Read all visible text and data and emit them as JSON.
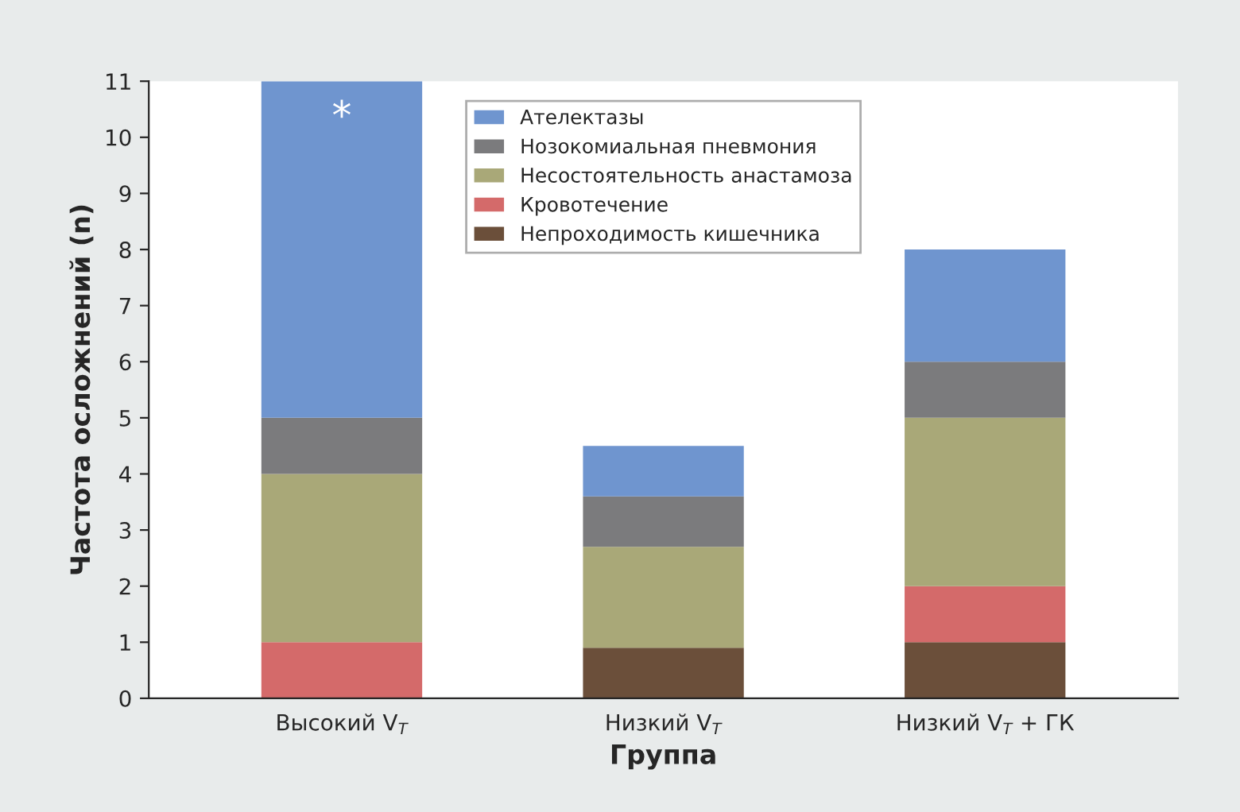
{
  "chart_data": {
    "type": "bar",
    "stacked": true,
    "xlabel": "Группа",
    "ylabel": "Частота осложнений (n)",
    "categories": [
      "Высокий V$_{T}$",
      "Низкий V$_{T}$",
      "Низкий V$_{T}$ + ГК"
    ],
    "series": [
      {
        "name": "Непроходимость кишечника",
        "color": "#6b4f3a",
        "values": [
          0,
          0.9,
          1
        ]
      },
      {
        "name": "Кровотечение",
        "color": "#d46a6a",
        "values": [
          1,
          0,
          1
        ]
      },
      {
        "name": "Несостоятельность анастамоза",
        "color": "#a9a878",
        "values": [
          3,
          1.8,
          3
        ]
      },
      {
        "name": "Нозокомиальная пневмония",
        "color": "#7b7b7d",
        "values": [
          1,
          0.9,
          1
        ]
      },
      {
        "name": "Ателектазы",
        "color": "#6f95cf",
        "values": [
          6,
          0.9,
          2
        ]
      }
    ],
    "ylim": [
      0,
      11
    ],
    "yticks": [
      0,
      1,
      2,
      3,
      4,
      5,
      6,
      7,
      8,
      9,
      10,
      11
    ],
    "legend": "top",
    "grid": false,
    "annotations": [
      "*"
    ]
  }
}
